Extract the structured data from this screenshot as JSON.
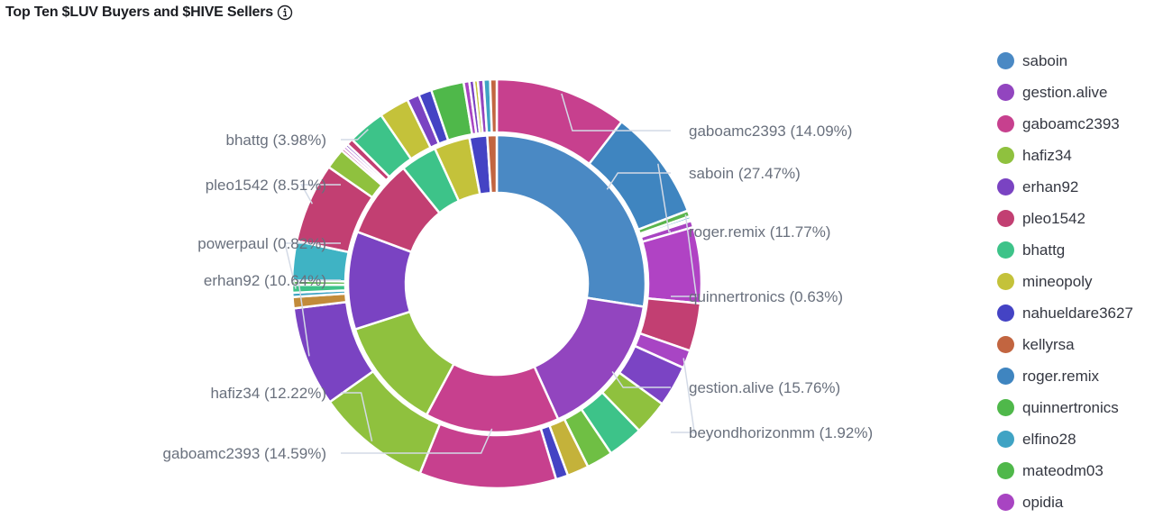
{
  "header": {
    "title": "Top Ten $LUV Buyers and $HIVE Sellers",
    "info_icon": "info-icon"
  },
  "chart_data": {
    "type": "pie",
    "subtype": "nested-donut",
    "title": "Top Ten $LUV Buyers and $HIVE Sellers",
    "legend_position": "right",
    "rings": [
      {
        "name": "inner",
        "slices": [
          {
            "label": "saboin",
            "value": 27.47,
            "color": "#4a89c4"
          },
          {
            "label": "gestion.alive",
            "value": 15.76,
            "color": "#9245bf"
          },
          {
            "label": "gaboamc2393",
            "value": 14.59,
            "color": "#c7408e"
          },
          {
            "label": "hafiz34",
            "value": 12.22,
            "color": "#8fc13e"
          },
          {
            "label": "erhan92",
            "value": 10.64,
            "color": "#7a43c2"
          },
          {
            "label": "pleo1542",
            "value": 8.51,
            "color": "#c23f72"
          },
          {
            "label": "bhattg",
            "value": 3.98,
            "color": "#3dc389"
          },
          {
            "label": "mineopoly",
            "value": 3.88,
            "color": "#c4c23a"
          },
          {
            "label": "nahueldare3627",
            "value": 1.93,
            "color": "#4443c4"
          },
          {
            "label": "kellyrsa",
            "value": 1.02,
            "color": "#c26540"
          }
        ]
      },
      {
        "name": "outer",
        "slices": [
          {
            "label": "gaboamc2393",
            "value": 14.09,
            "color": "#c7408e"
          },
          {
            "label": "roger.remix",
            "value": 11.77,
            "color": "#3f85c0"
          },
          {
            "label": "quinnertronics",
            "value": 0.63,
            "color": "#5ab54d"
          },
          {
            "label": "elfino28",
            "value": 0.3,
            "color": "#3fa3c4"
          },
          {
            "label": "mateodm03",
            "value": 0.2,
            "color": "#4fb84a"
          },
          {
            "label": "opidia",
            "value": 0.7,
            "color": "#a844c2"
          },
          {
            "label": "gestion.alive",
            "value": 8.1,
            "color": "#b043c4"
          },
          {
            "label": "pleo1542",
            "value": 5.1,
            "color": "#c23f72"
          },
          {
            "label": "beyondhorizonmm",
            "value": 1.92,
            "color": "#a845c4"
          },
          {
            "label": "erhan92",
            "value": 4.4,
            "color": "#7b44c4"
          },
          {
            "label": "hafiz34",
            "value": 3.7,
            "color": "#8fc13e"
          },
          {
            "label": "bhattg",
            "value": 3.8,
            "color": "#3dc389"
          },
          {
            "label": "hafiz34",
            "value": 2.8,
            "color": "#6fbf44"
          },
          {
            "label": "mineopoly",
            "value": 2.3,
            "color": "#c4b23a"
          },
          {
            "label": "nahueldare3627",
            "value": 1.3,
            "color": "#4443c4"
          },
          {
            "label": "gaboamc2393",
            "value": 14.59,
            "color": "#c7408e"
          },
          {
            "label": "hafiz34",
            "value": 12.22,
            "color": "#8fc13e"
          },
          {
            "label": "erhan92",
            "value": 10.64,
            "color": "#7a43c2"
          },
          {
            "label": "kellyrsa",
            "value": 1.2,
            "color": "#c28b3a"
          },
          {
            "label": "bhattg",
            "value": 0.45,
            "color": "#3fa3c4"
          },
          {
            "label": "powerpaul",
            "value": 0.82,
            "color": "#3dc389"
          },
          {
            "label": "quinnertronics",
            "value": 0.45,
            "color": "#5ab54d"
          },
          {
            "label": "elfino28",
            "value": 4.2,
            "color": "#3fb3c4"
          },
          {
            "label": "pleo1542",
            "value": 8.51,
            "color": "#c23f72"
          },
          {
            "label": "hafiz34",
            "value": 2.2,
            "color": "#8fc13e"
          },
          {
            "label": "mateodm03",
            "value": 0.3,
            "color": "#c23f8e"
          },
          {
            "label": "opidia",
            "value": 0.3,
            "color": "#a844c2"
          },
          {
            "label": "saboin",
            "value": 0.3,
            "color": "#7a43c2"
          },
          {
            "label": "gestion.alive",
            "value": 0.7,
            "color": "#c23f72"
          },
          {
            "label": "bhattg",
            "value": 3.98,
            "color": "#3dc389"
          },
          {
            "label": "mineopoly",
            "value": 3.2,
            "color": "#c4c23a"
          },
          {
            "label": "nahueldare3627",
            "value": 1.3,
            "color": "#7a43c2"
          },
          {
            "label": "erhan92",
            "value": 1.4,
            "color": "#4443c4"
          },
          {
            "label": "mateodm03",
            "value": 3.5,
            "color": "#4fb84a"
          },
          {
            "label": "opidia",
            "value": 0.6,
            "color": "#a844c2"
          },
          {
            "label": "saboin",
            "value": 0.5,
            "color": "#7a43c2"
          },
          {
            "label": "kellyrsa",
            "value": 0.4,
            "color": "#c4c23a"
          },
          {
            "label": "gestion.alive",
            "value": 0.6,
            "color": "#9245bf"
          },
          {
            "label": "roger.remix",
            "value": 0.7,
            "color": "#3fa3c4"
          },
          {
            "label": "kellyrsa",
            "value": 0.7,
            "color": "#c26540"
          }
        ]
      }
    ],
    "annotations": [
      {
        "text": "gaboamc2393 (14.09%)",
        "ring": "outer",
        "side": "right"
      },
      {
        "text": "saboin (27.47%)",
        "ring": "inner",
        "side": "right"
      },
      {
        "text": "roger.remix (11.77%)",
        "ring": "outer",
        "side": "right"
      },
      {
        "text": "quinnertronics (0.63%)",
        "ring": "outer",
        "side": "right"
      },
      {
        "text": "gestion.alive (15.76%)",
        "ring": "inner",
        "side": "right"
      },
      {
        "text": "beyondhorizonmm (1.92%)",
        "ring": "outer",
        "side": "right"
      },
      {
        "text": "bhattg (3.98%)",
        "ring": "outer",
        "side": "left"
      },
      {
        "text": "pleo1542 (8.51%)",
        "ring": "outer",
        "side": "left"
      },
      {
        "text": "powerpaul (0.82%)",
        "ring": "outer",
        "side": "left"
      },
      {
        "text": "erhan92 (10.64%)",
        "ring": "outer",
        "side": "left"
      },
      {
        "text": "hafiz34 (12.22%)",
        "ring": "outer",
        "side": "left"
      },
      {
        "text": "gaboamc2393 (14.59%)",
        "ring": "inner",
        "side": "left"
      }
    ]
  },
  "legend": {
    "items": [
      {
        "label": "saboin",
        "color": "#4a89c4"
      },
      {
        "label": "gestion.alive",
        "color": "#9245bf"
      },
      {
        "label": "gaboamc2393",
        "color": "#c7408e"
      },
      {
        "label": "hafiz34",
        "color": "#8fc13e"
      },
      {
        "label": "erhan92",
        "color": "#7a43c2"
      },
      {
        "label": "pleo1542",
        "color": "#c23f72"
      },
      {
        "label": "bhattg",
        "color": "#3dc389"
      },
      {
        "label": "mineopoly",
        "color": "#c4c23a"
      },
      {
        "label": "nahueldare3627",
        "color": "#4443c4"
      },
      {
        "label": "kellyrsa",
        "color": "#c26540"
      },
      {
        "label": "roger.remix",
        "color": "#3f85c0"
      },
      {
        "label": "quinnertronics",
        "color": "#4fb84a"
      },
      {
        "label": "elfino28",
        "color": "#3fa3c4"
      },
      {
        "label": "mateodm03",
        "color": "#4fb84a"
      },
      {
        "label": "opidia",
        "color": "#a844c2"
      }
    ]
  }
}
